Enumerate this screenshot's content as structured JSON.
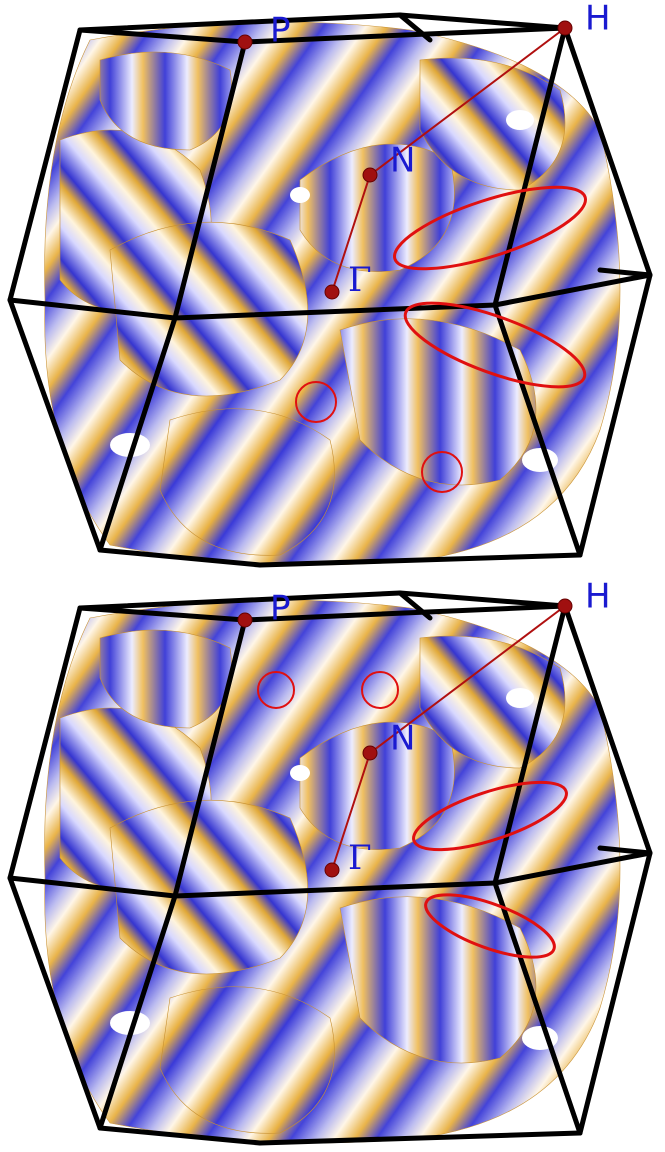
{
  "panels": [
    {
      "points": [
        "P",
        "H",
        "N",
        "Γ"
      ]
    },
    {
      "points": [
        "P",
        "H",
        "N",
        "Γ"
      ]
    }
  ]
}
